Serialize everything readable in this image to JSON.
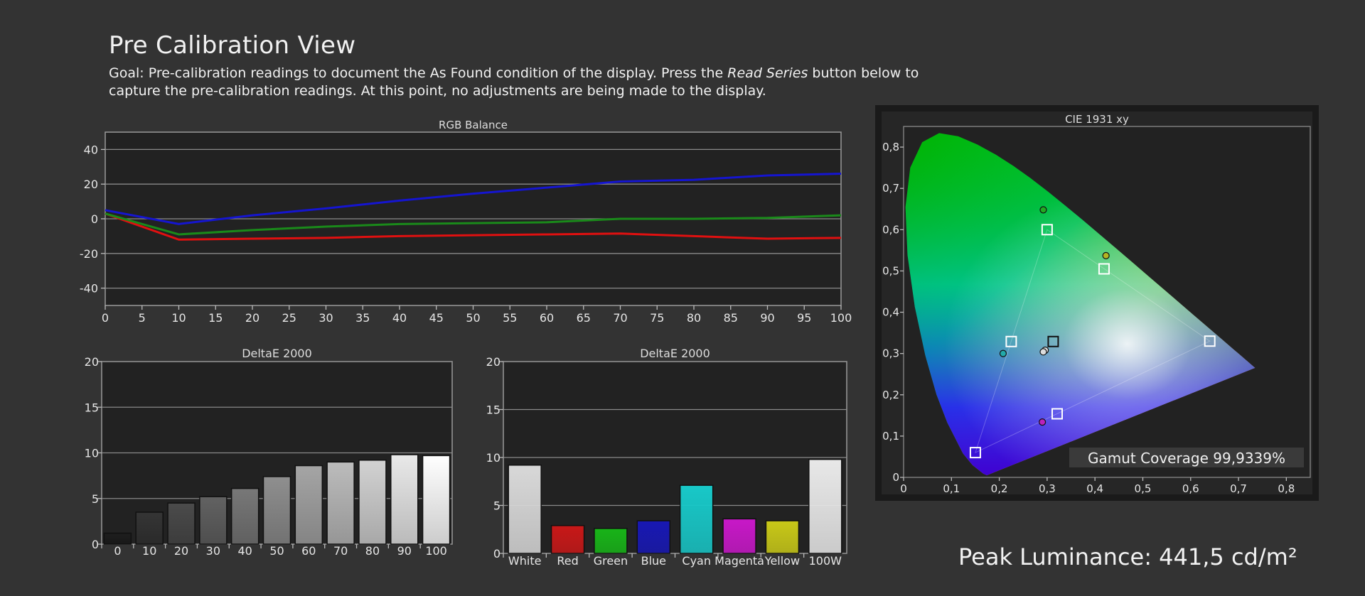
{
  "page": {
    "title": "Pre Calibration View",
    "goal_prefix": "Goal: Pre-calibration readings to document the As Found condition of the display. Press the ",
    "goal_emphasis": "Read Series",
    "goal_suffix": " button below to capture the pre-calibration readings. At this point, no adjustments are being made to the display.",
    "peak_luminance": "Peak Luminance: 441,5 cd/m²"
  },
  "colors": {
    "background": "#333333",
    "plot_bg": "#222222",
    "grid": "#8a8a8a",
    "red_series": "#e01010",
    "green_series": "#1a8a1a",
    "blue_series": "#1515d0"
  },
  "chart_data": [
    {
      "id": "rgb_balance",
      "type": "line",
      "title": "RGB Balance",
      "x": [
        0,
        10,
        20,
        30,
        40,
        50,
        60,
        70,
        80,
        90,
        100
      ],
      "xticks": [
        "0",
        "5",
        "10",
        "15",
        "20",
        "25",
        "30",
        "35",
        "40",
        "45",
        "50",
        "55",
        "60",
        "65",
        "70",
        "75",
        "80",
        "85",
        "90",
        "95",
        "100"
      ],
      "xlim": [
        0,
        100
      ],
      "ylim": [
        -50,
        50
      ],
      "yticks": [
        "40",
        "20",
        "0",
        "-20",
        "-40"
      ],
      "series": [
        {
          "color": "#e01010",
          "values": [
            3,
            -12,
            -11.5,
            -11,
            -10,
            -9.5,
            -9,
            -8.5,
            -10,
            -11.5,
            -11
          ]
        },
        {
          "color": "#1a8a1a",
          "values": [
            3,
            -9,
            -6.5,
            -4.5,
            -3,
            -2.5,
            -2,
            0,
            0,
            0.5,
            2
          ]
        },
        {
          "color": "#1515d0",
          "values": [
            5,
            -3,
            2,
            6,
            10.5,
            14.5,
            18,
            21.5,
            22.5,
            25,
            26
          ]
        }
      ]
    },
    {
      "id": "deltae_grayscale",
      "type": "bar",
      "title": "DeltaE 2000",
      "categories": [
        "0",
        "10",
        "20",
        "30",
        "40",
        "50",
        "60",
        "70",
        "80",
        "90",
        "100"
      ],
      "values": [
        1.2,
        3.5,
        4.5,
        5.2,
        6.1,
        7.4,
        8.6,
        9.0,
        9.2,
        9.8,
        9.7
      ],
      "ylim": [
        0,
        20
      ],
      "yticks": [
        "20",
        "15",
        "10",
        "5",
        "0"
      ]
    },
    {
      "id": "deltae_colors",
      "type": "bar",
      "title": "DeltaE 2000",
      "categories": [
        "White",
        "Red",
        "Green",
        "Blue",
        "Cyan",
        "Magenta",
        "Yellow",
        "100W"
      ],
      "values": [
        9.2,
        2.9,
        2.6,
        3.4,
        7.1,
        3.6,
        3.4,
        9.8
      ],
      "bar_colors": [
        "#d8d8d8",
        "#c81818",
        "#18b418",
        "#1818b4",
        "#18c8c8",
        "#c818c8",
        "#c8c818",
        "#e8e8e8"
      ],
      "ylim": [
        0,
        20
      ],
      "yticks": [
        "20",
        "15",
        "10",
        "5",
        "0"
      ]
    },
    {
      "id": "cie_1931",
      "type": "scatter",
      "title": "CIE 1931 xy",
      "xlim": [
        0,
        0.85
      ],
      "ylim": [
        0,
        0.85
      ],
      "xticks": [
        "0",
        "0,1",
        "0,2",
        "0,3",
        "0,4",
        "0,5",
        "0,6",
        "0,7",
        "0,8"
      ],
      "yticks": [
        "0,8",
        "0,7",
        "0,6",
        "0,5",
        "0,4",
        "0,3",
        "0,2",
        "0,1",
        "0"
      ],
      "targets": [
        {
          "name": "red",
          "x": 0.64,
          "y": 0.33
        },
        {
          "name": "green",
          "x": 0.3,
          "y": 0.6
        },
        {
          "name": "blue",
          "x": 0.15,
          "y": 0.06
        },
        {
          "name": "yellow",
          "x": 0.419,
          "y": 0.505
        },
        {
          "name": "cyan",
          "x": 0.225,
          "y": 0.329
        },
        {
          "name": "magenta",
          "x": 0.321,
          "y": 0.154
        },
        {
          "name": "white",
          "x": 0.3127,
          "y": 0.329
        }
      ],
      "measured": [
        {
          "name": "green",
          "x": 0.292,
          "y": 0.648,
          "color": "#22aa22"
        },
        {
          "name": "yellow",
          "x": 0.423,
          "y": 0.537,
          "color": "#b4b422"
        },
        {
          "name": "cyan",
          "x": 0.208,
          "y": 0.3,
          "color": "#22aaaa"
        },
        {
          "name": "magenta",
          "x": 0.29,
          "y": 0.134,
          "color": "#bb22bb"
        },
        {
          "name": "white",
          "x": 0.296,
          "y": 0.308,
          "color": "#dddddd"
        },
        {
          "name": "white-b",
          "x": 0.292,
          "y": 0.304,
          "color": "#dddddd"
        }
      ],
      "gamut_coverage": "Gamut Coverage 99,9339%"
    }
  ]
}
